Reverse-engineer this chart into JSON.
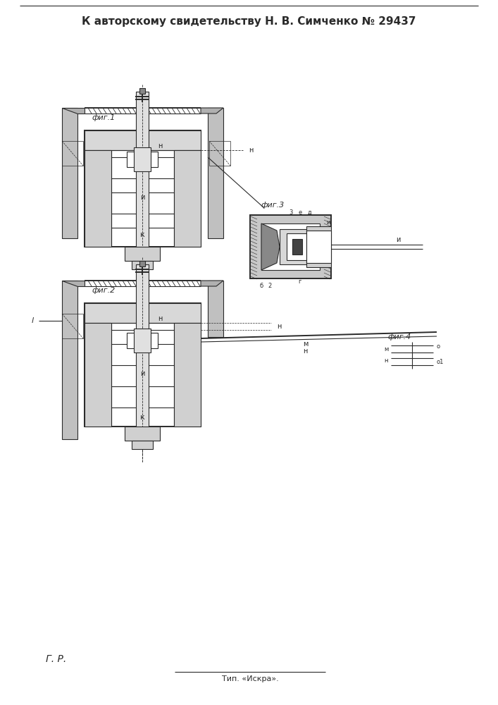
{
  "title": "К авторскому свидетельству Н. В. Симченко № 29437",
  "footer_left": "Г. Р.",
  "footer_center": "Тип. «Искра».",
  "bg_color": "#ffffff",
  "line_color": "#2a2a2a",
  "fig_width": 7.07,
  "fig_height": 10.0,
  "dpi": 100
}
